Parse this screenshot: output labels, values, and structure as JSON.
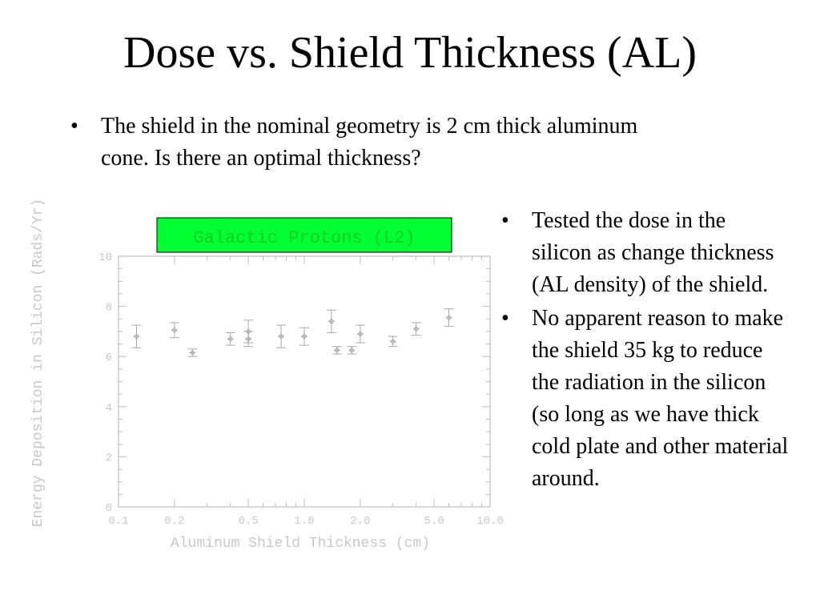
{
  "slide": {
    "title": "Dose vs. Shield Thickness (AL)",
    "top_bullet": "The shield in the nominal geometry is 2 cm thick aluminum cone. Is there an optimal thickness?",
    "right_bullets": [
      "Tested the dose in the silicon as change thickness (AL density) of the shield.",
      "No apparent reason to make the shield 35 kg to reduce the radiation in the silicon (so long as we have thick cold plate and other material around."
    ],
    "bullet_symbol": "•"
  },
  "chart_data": {
    "type": "scatter",
    "title": "Galactic Protons  (L2)",
    "xlabel": "Aluminum Shield Thickness (cm)",
    "ylabel": "Energy Deposition in Silicon (Rads/Yr)",
    "x_scale": "log",
    "xlim": [
      0.1,
      10.0
    ],
    "ylim": [
      0,
      10
    ],
    "x_ticks": [
      "0.1",
      "0.2",
      "0.5",
      "1.0",
      "2.0",
      "5.0",
      "10.0"
    ],
    "x_tick_values": [
      0.1,
      0.2,
      0.5,
      1.0,
      2.0,
      5.0,
      10.0
    ],
    "y_ticks": [
      "0",
      "2",
      "4",
      "6",
      "8",
      "10"
    ],
    "y_tick_values": [
      0,
      2,
      4,
      6,
      8,
      10
    ],
    "points": [
      {
        "x": 0.125,
        "y": 6.8,
        "err": 0.45
      },
      {
        "x": 0.2,
        "y": 7.05,
        "err": 0.3
      },
      {
        "x": 0.25,
        "y": 6.15,
        "err": 0.15
      },
      {
        "x": 0.4,
        "y": 6.7,
        "err": 0.25
      },
      {
        "x": 0.5,
        "y": 7.0,
        "err": 0.45
      },
      {
        "x": 0.5,
        "y": 6.7,
        "err": 0.3
      },
      {
        "x": 0.75,
        "y": 6.8,
        "err": 0.45
      },
      {
        "x": 1.0,
        "y": 6.8,
        "err": 0.35
      },
      {
        "x": 1.4,
        "y": 7.4,
        "err": 0.45
      },
      {
        "x": 1.5,
        "y": 6.25,
        "err": 0.15
      },
      {
        "x": 1.8,
        "y": 6.25,
        "err": 0.15
      },
      {
        "x": 2.0,
        "y": 6.9,
        "err": 0.35
      },
      {
        "x": 3.0,
        "y": 6.6,
        "err": 0.2
      },
      {
        "x": 4.0,
        "y": 7.1,
        "err": 0.25
      },
      {
        "x": 6.0,
        "y": 7.55,
        "err": 0.35
      }
    ],
    "colors": {
      "title_box": "#00ff33",
      "title_text": "#00cc22",
      "axis": "#bdbdbd",
      "marker": "#a9a9a9",
      "label": "#c8c8c8"
    }
  }
}
